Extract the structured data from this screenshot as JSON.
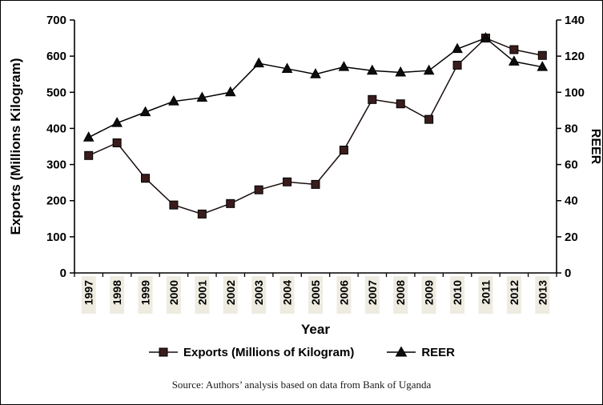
{
  "chart_data": {
    "type": "line",
    "xlabel": "Year",
    "x": [
      "1997",
      "1998",
      "1999",
      "2000",
      "2001",
      "2002",
      "2003",
      "2004",
      "2005",
      "2006",
      "2007",
      "2008",
      "2009",
      "2010",
      "2011",
      "2012",
      "2013"
    ],
    "left_axis": {
      "label": "Exports  (Millions Kilogram)",
      "min": 0,
      "max": 700,
      "ticks": [
        0,
        100,
        200,
        300,
        400,
        500,
        600,
        700
      ]
    },
    "right_axis": {
      "label": "REER",
      "min": 0,
      "max": 140,
      "ticks": [
        0,
        20,
        40,
        60,
        80,
        100,
        120,
        140
      ]
    },
    "series": [
      {
        "name": "Exports  (Millions of Kilogram)",
        "axis": "left",
        "marker": "square",
        "line_color": "#1a0d0d",
        "marker_fill": "#3a1c1c",
        "values": [
          325,
          360,
          262,
          188,
          163,
          192,
          230,
          252,
          245,
          340,
          480,
          468,
          425,
          575,
          650,
          618,
          602
        ]
      },
      {
        "name": "REER",
        "axis": "right",
        "marker": "triangle",
        "line_color": "#000000",
        "marker_fill": "#0d0d0d",
        "values": [
          75,
          83,
          89,
          95,
          97,
          100,
          116,
          113,
          110,
          114,
          112,
          111,
          112,
          124,
          130,
          117,
          114
        ]
      }
    ],
    "legend_position": "bottom",
    "grid": false
  },
  "styles": {
    "xlabel_band_color": "#EEECE1",
    "axis_color": "#000000",
    "background": "#FFFFFF"
  },
  "source_note": "Source: Authors’ analysis based on data from Bank of Uganda"
}
